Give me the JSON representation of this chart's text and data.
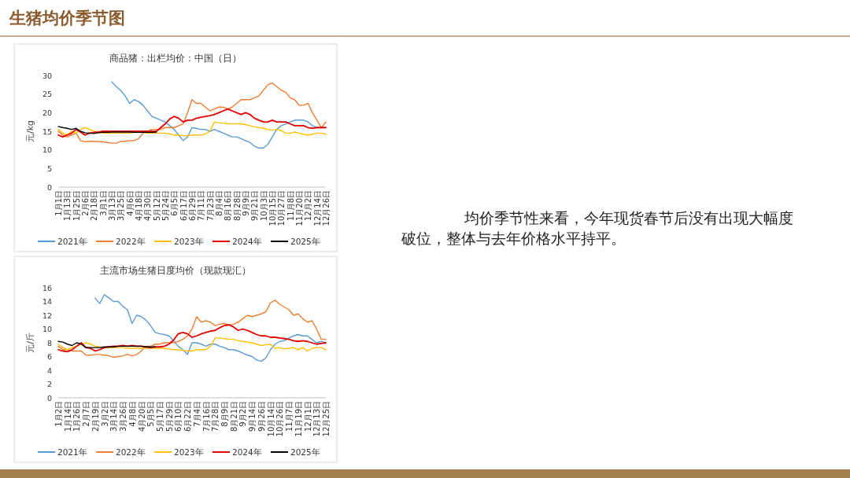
{
  "chart_data": [
    {
      "type": "other",
      "title": "生猪均价季节图",
      "annotations": [
        "均价季节性来看，今年现货春节后没有出现大幅度破位，整体与去年价格水平持平。"
      ]
    },
    {
      "type": "line",
      "title": "商品猪：出栏均价：中国（日）",
      "ylabel": "元/kg",
      "ylim": [
        0,
        30
      ],
      "yticks": [
        0,
        5,
        10,
        15,
        20,
        25,
        30
      ],
      "legend": "bottom",
      "categories": [
        "1月1日",
        null,
        "1月13日",
        null,
        "1月25日",
        null,
        "2月6日",
        null,
        "2月18日",
        null,
        "3月1日",
        null,
        "3月13日",
        null,
        "3月25日",
        null,
        "4月6日",
        null,
        "4月18日",
        null,
        "4月30日",
        null,
        "5月12日",
        null,
        "5月24日",
        null,
        "6月5日",
        null,
        "6月17日",
        null,
        "6月29日",
        null,
        "7月11日",
        null,
        "7月23日",
        null,
        "8月4日",
        null,
        "8月16日",
        null,
        "8月28日",
        null,
        "9月9日",
        null,
        "9月21日",
        null,
        "10月3日",
        null,
        "10月15日",
        null,
        "10月27日",
        null,
        "11月8日",
        null,
        "11月20日",
        null,
        "12月2日",
        null,
        "12月14日",
        null,
        "12月26日"
      ],
      "series": [
        {
          "name": "2021年",
          "color": "#5b9bd5",
          "values": [
            null,
            null,
            null,
            null,
            null,
            null,
            null,
            null,
            null,
            null,
            null,
            null,
            28.3,
            27,
            26,
            24.5,
            22.5,
            23.5,
            23,
            22,
            20.5,
            19,
            18.5,
            18,
            17.5,
            16.5,
            15.5,
            14,
            12.5,
            13.5,
            16,
            15.8,
            15.5,
            15.5,
            15,
            15.5,
            15,
            14.5,
            14,
            13.5,
            13.5,
            13,
            12.5,
            12,
            11,
            10.5,
            10.5,
            11.5,
            13.5,
            15.5,
            16.5,
            17,
            17.5,
            18,
            18,
            18,
            17.5,
            16.5,
            16,
            null,
            null
          ]
        },
        {
          "name": "2022年",
          "color": "#ed7d31",
          "values": [
            15,
            14,
            13.5,
            14,
            14.5,
            12.5,
            12.2,
            12.3,
            12.3,
            12.2,
            12.2,
            12,
            11.8,
            11.8,
            12.3,
            12.3,
            12.5,
            12.5,
            13,
            14.5,
            15,
            15.5,
            15.5,
            15.5,
            16,
            16,
            16,
            16.5,
            17,
            20,
            23.5,
            22.5,
            22.5,
            21.5,
            20.5,
            21,
            21.5,
            21.5,
            21,
            21.5,
            22.5,
            23.5,
            23.5,
            23.5,
            24,
            24.5,
            26,
            27.5,
            28,
            27,
            26,
            25.5,
            24,
            23.5,
            22,
            22,
            22.5,
            20,
            18,
            16,
            17.5
          ]
        },
        {
          "name": "2023年",
          "color": "#ffc000",
          "values": [
            15.5,
            14.5,
            14,
            15,
            14.5,
            15.5,
            16,
            15.5,
            15,
            14.8,
            14.5,
            14.5,
            14.5,
            14.5,
            14.5,
            14.5,
            14.5,
            14.7,
            14.8,
            14.7,
            14.5,
            14.5,
            14.5,
            14.5,
            14.5,
            14.3,
            14,
            14,
            13.8,
            13.8,
            14,
            14,
            14,
            14.3,
            15,
            17.5,
            17.3,
            17.2,
            17,
            17,
            17,
            17,
            16.8,
            16.5,
            16.2,
            16,
            15.8,
            15.5,
            15.3,
            15.5,
            15.2,
            14.5,
            14.5,
            14.8,
            14.5,
            14.2,
            14,
            14.2,
            14.5,
            14.5,
            14.2
          ]
        },
        {
          "name": "2024年",
          "color": "#e00000",
          "values": [
            14,
            13.5,
            14,
            14.5,
            15.5,
            14.8,
            14,
            14.5,
            14.7,
            14.8,
            15,
            15,
            15,
            15,
            15,
            15,
            15,
            15,
            15,
            15,
            15,
            15,
            15,
            16,
            17,
            18.3,
            19,
            18.5,
            17.5,
            18,
            18,
            18.5,
            18.8,
            19,
            19.2,
            19.5,
            20,
            20.5,
            21,
            20.5,
            20,
            19.5,
            20,
            19.5,
            18.5,
            18,
            17.5,
            17.5,
            18,
            17.5,
            17.5,
            17.5,
            17,
            16.5,
            16.5,
            16.5,
            16,
            15.8,
            16,
            16,
            16
          ]
        },
        {
          "name": "2025年",
          "color": "#000000",
          "values": [
            16.3,
            16,
            15.8,
            15.5,
            15.8,
            15,
            14.6,
            14.5,
            14.4,
            14.6,
            14.7,
            14.7,
            14.8,
            14.8,
            14.8,
            14.8,
            14.8,
            14.7,
            14.7,
            14.7,
            14.7,
            14.7,
            14.8,
            null,
            null,
            null,
            null,
            null,
            null,
            null,
            null,
            null,
            null,
            null,
            null,
            null,
            null,
            null,
            null,
            null,
            null,
            null,
            null,
            null,
            null,
            null,
            null,
            null,
            null,
            null,
            null,
            null,
            null,
            null,
            null,
            null,
            null,
            null,
            null,
            null,
            null
          ]
        }
      ]
    },
    {
      "type": "line",
      "title": "主流市场生猪日度均价（现款现汇）",
      "ylabel": "元/斤",
      "ylim": [
        0,
        16
      ],
      "yticks": [
        0,
        2,
        4,
        6,
        8,
        10,
        12,
        14,
        16
      ],
      "legend": "bottom",
      "categories": [
        "1月2日",
        null,
        "1月14日",
        null,
        "1月26日",
        null,
        "2月7日",
        null,
        "2月19日",
        null,
        "3月2日",
        null,
        "3月14日",
        null,
        "3月26日",
        null,
        "4月8日",
        null,
        "4月20日",
        null,
        "5月5日",
        null,
        "5月17日",
        null,
        "5月29日",
        null,
        "6月10日",
        null,
        "6月22日",
        null,
        "7月4日",
        null,
        "7月16日",
        null,
        "7月28日",
        null,
        "8月9日",
        null,
        "8月21日",
        null,
        "9月2日",
        null,
        "9月14日",
        null,
        "9月26日",
        null,
        "10月14日",
        null,
        "10月26日",
        null,
        "11月7日",
        null,
        "11月19日",
        null,
        "12月1日",
        null,
        "12月13日",
        null,
        "12月25日"
      ],
      "series": [
        {
          "name": "2021年",
          "color": "#5b9bd5",
          "values": [
            null,
            null,
            null,
            null,
            null,
            null,
            null,
            null,
            14.5,
            13.7,
            15,
            14.5,
            14,
            14,
            13.3,
            12.8,
            10.8,
            12,
            11.8,
            11.3,
            10.5,
            9.5,
            9.3,
            9.2,
            9,
            8.3,
            7.5,
            7,
            6.3,
            8,
            8,
            7.8,
            7.5,
            7.8,
            7.8,
            7.5,
            7.3,
            7,
            7,
            6.8,
            6.5,
            6.2,
            6,
            5.5,
            5.3,
            5.8,
            7,
            7.8,
            8.2,
            8.3,
            8.7,
            9,
            9.2,
            9,
            9,
            8.5,
            8,
            8.2,
            8
          ]
        },
        {
          "name": "2022年",
          "color": "#ed7d31",
          "values": [
            7.5,
            7,
            7,
            6.8,
            6.8,
            6.8,
            6.2,
            6.2,
            6.3,
            6.3,
            6.2,
            6.1,
            5.9,
            6,
            6.1,
            6.3,
            6.1,
            6.3,
            6.8,
            7.5,
            7.5,
            7.8,
            7.8,
            8,
            8,
            8,
            8.2,
            8.5,
            9,
            10,
            11.8,
            11,
            11.2,
            11,
            10.5,
            10.7,
            10.8,
            10.6,
            10.7,
            11,
            11.5,
            12,
            11.8,
            12,
            12.2,
            12.5,
            13.8,
            14.2,
            13.6,
            13.2,
            12.8,
            12,
            12.2,
            11.5,
            11,
            11.2,
            10,
            8.5,
            8.5
          ]
        },
        {
          "name": "2023年",
          "color": "#ffc000",
          "values": [
            7.8,
            7.3,
            7,
            7.3,
            7.5,
            7.8,
            8,
            7.8,
            7.5,
            7.4,
            7.3,
            7.3,
            7.3,
            7.3,
            7.3,
            7.2,
            7.2,
            7.2,
            7.2,
            7.2,
            7.2,
            7.2,
            7.2,
            7.2,
            7.1,
            7,
            7,
            6.9,
            6.8,
            6.8,
            7,
            7,
            7,
            7.5,
            8.7,
            8.7,
            8.6,
            8.5,
            8.5,
            8.3,
            8.2,
            8.1,
            8,
            7.8,
            7.6,
            7.7,
            7.8,
            7.2,
            7.3,
            7.1,
            7.2,
            7.3,
            7,
            7.3,
            6.8,
            7.2,
            7.3,
            7.3,
            7
          ]
        },
        {
          "name": "2024年",
          "color": "#e00000",
          "values": [
            7,
            6.8,
            6.7,
            7,
            7.5,
            8,
            7.3,
            7.2,
            6.8,
            7,
            7.3,
            7.4,
            7.5,
            7.5,
            7.6,
            7.5,
            7.6,
            7.5,
            7.5,
            7.4,
            7.3,
            7.4,
            7.4,
            7.5,
            7.8,
            8.4,
            9.3,
            9.5,
            9.3,
            8.8,
            9,
            9.3,
            9.5,
            9.7,
            9.8,
            10.2,
            10.5,
            10.6,
            10.3,
            9.8,
            10,
            9.8,
            9.5,
            9.2,
            9,
            9,
            8.8,
            8.8,
            8.7,
            8.6,
            8.5,
            8.3,
            8.2,
            8.3,
            8.2,
            8,
            7.8,
            7.9,
            8
          ]
        },
        {
          "name": "2025年",
          "color": "#000000",
          "values": [
            8.2,
            8.1,
            7.8,
            7.6,
            8,
            7.8,
            7.3,
            7.3,
            7.3,
            7.3,
            7.4,
            7.4,
            7.4,
            7.5,
            7.5,
            7.5,
            7.5,
            7.5,
            7.5,
            7.4,
            7.4,
            7.4,
            null,
            null,
            null,
            null,
            null,
            null,
            null,
            null,
            null,
            null,
            null,
            null,
            null,
            null,
            null,
            null,
            null,
            null,
            null,
            null,
            null,
            null,
            null,
            null,
            null,
            null,
            null,
            null,
            null,
            null,
            null,
            null,
            null,
            null,
            null,
            null,
            null
          ]
        }
      ]
    }
  ]
}
